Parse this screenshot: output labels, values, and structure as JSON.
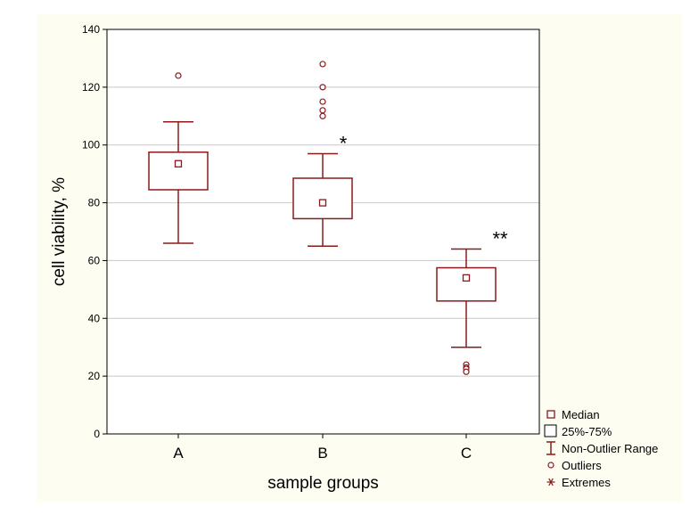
{
  "chart_data": {
    "type": "box",
    "title": "",
    "xlabel": "sample groups",
    "ylabel": "cell viability, %",
    "ylim": [
      0,
      140
    ],
    "yticks": [
      0,
      20,
      40,
      60,
      80,
      100,
      120,
      140
    ],
    "grid": "horizontal",
    "legend_position": "right",
    "colors": {
      "mark": "#8b1a1a",
      "grid": "#c8c8c8",
      "axis": "#000000",
      "background": "#fdfdf2"
    },
    "categories": [
      "A",
      "B",
      "C"
    ],
    "groups": [
      {
        "category": "A",
        "median": 93.5,
        "q1": 84.5,
        "q3": 97.5,
        "whisker_low": 66,
        "whisker_high": 108,
        "outliers": [
          124
        ],
        "annotation": ""
      },
      {
        "category": "B",
        "median": 80,
        "q1": 74.5,
        "q3": 88.5,
        "whisker_low": 65,
        "whisker_high": 97,
        "outliers": [
          128,
          120,
          115,
          112,
          110
        ],
        "annotation": "*"
      },
      {
        "category": "C",
        "median": 54,
        "q1": 46,
        "q3": 57.5,
        "whisker_low": 30,
        "whisker_high": 64,
        "outliers": [
          24,
          23,
          22.5,
          21.5
        ],
        "annotation": "**"
      }
    ],
    "legend": [
      {
        "symbol": "median",
        "label": "Median"
      },
      {
        "symbol": "box",
        "label": "25%-75%"
      },
      {
        "symbol": "range",
        "label": "Non-Outlier Range"
      },
      {
        "symbol": "outlier",
        "label": "Outliers"
      },
      {
        "symbol": "extreme",
        "label": "Extremes"
      }
    ]
  }
}
